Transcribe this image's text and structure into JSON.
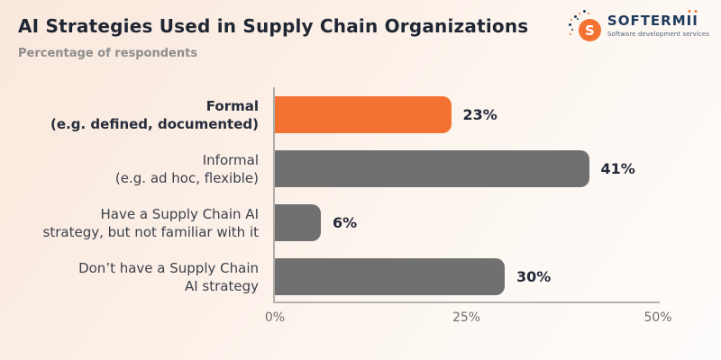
{
  "header": {
    "title": "AI Strategies Used in Supply Chain Organizations",
    "subtitle": "Percentage of respondents"
  },
  "logo": {
    "monogram": "S",
    "wordmark_main": "SOFTERM",
    "wordmark_i": "I",
    "tagline": "Software development services"
  },
  "colors": {
    "accent_orange": "#F37231",
    "bar_gray": "#707070",
    "navy": "#1E3A5C",
    "title_text": "#1F2633",
    "axis_line": "#B3B1AF",
    "tick_text": "#6E6E6E"
  },
  "chart_data": {
    "type": "bar",
    "orientation": "horizontal",
    "title": "AI Strategies Used in Supply Chain Organizations",
    "subtitle": "Percentage of respondents",
    "xlabel": "",
    "ylabel": "",
    "xlim": [
      0,
      50
    ],
    "x_ticks": [
      "0%",
      "25%",
      "50%"
    ],
    "grid": false,
    "legend": false,
    "categories": [
      "Formal (e.g. defined, documented)",
      "Informal (e.g. ad hoc, flexible)",
      "Have a Supply Chain AI strategy, but not familiar with it",
      "Don’t have a Supply Chain AI strategy"
    ],
    "values": [
      23,
      41,
      6,
      30
    ],
    "bars": [
      {
        "label_lines": [
          "Formal",
          "(e.g. defined, documented)"
        ],
        "value": 23,
        "value_label": "23%",
        "color": "#F37231",
        "label_bold": true
      },
      {
        "label_lines": [
          "Informal",
          "(e.g. ad hoc, flexible)"
        ],
        "value": 41,
        "value_label": "41%",
        "color": "#707070",
        "label_bold": false
      },
      {
        "label_lines": [
          "Have a Supply Chain AI",
          "strategy, but not familiar with it"
        ],
        "value": 6,
        "value_label": "6%",
        "color": "#707070",
        "label_bold": false
      },
      {
        "label_lines": [
          "Don’t have a Supply Chain",
          "AI strategy"
        ],
        "value": 30,
        "value_label": "30%",
        "color": "#707070",
        "label_bold": false
      }
    ]
  }
}
